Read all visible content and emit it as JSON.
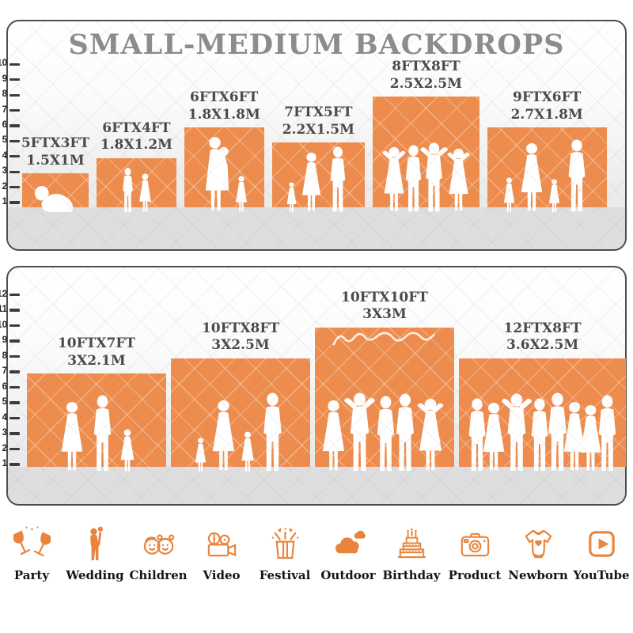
{
  "title": "SMALL-MEDIUM BACKDROPS",
  "accent_color": "#ED8C4D",
  "icon_color": "#E8843C",
  "panels": [
    {
      "name": "small-medium-top",
      "ruler_max": 10,
      "backdrops": [
        {
          "size_ft": "5FTX3FT",
          "size_m": "1.5X1M",
          "w_ft": 5,
          "h_ft": 3,
          "people": [
            {
              "type": "baby",
              "s": 0.4
            }
          ]
        },
        {
          "size_ft": "6FTX4FT",
          "size_m": "1.8X1.2M",
          "w_ft": 6,
          "h_ft": 4,
          "people": [
            {
              "type": "boy",
              "s": 0.63
            },
            {
              "type": "girl",
              "s": 0.55
            }
          ]
        },
        {
          "size_ft": "6FTX6FT",
          "size_m": "1.8X1.8M",
          "w_ft": 6,
          "h_ft": 6,
          "people": [
            {
              "type": "woman-baby",
              "s": 1.06
            },
            {
              "type": "girl",
              "s": 0.52
            }
          ]
        },
        {
          "size_ft": "7FTX5FT",
          "size_m": "2.2X1.5M",
          "w_ft": 7,
          "h_ft": 5,
          "people": [
            {
              "type": "girl",
              "s": 0.44
            },
            {
              "type": "woman",
              "s": 0.85
            },
            {
              "type": "man",
              "s": 0.92
            }
          ]
        },
        {
          "size_ft": "8FTX8FT",
          "size_m": "2.5X2.5M",
          "w_ft": 8,
          "h_ft": 8,
          "people": [
            {
              "type": "woman-arms-up",
              "s": 0.92
            },
            {
              "type": "man",
              "s": 0.95
            },
            {
              "type": "man-arms-up",
              "s": 0.98
            },
            {
              "type": "woman-arms-up",
              "s": 0.9
            }
          ]
        },
        {
          "size_ft": "9FTX6FT",
          "size_m": "2.7X1.8M",
          "w_ft": 9,
          "h_ft": 6,
          "people": [
            {
              "type": "girl",
              "s": 0.5
            },
            {
              "type": "woman",
              "s": 0.98
            },
            {
              "type": "girl",
              "s": 0.48
            },
            {
              "type": "man",
              "s": 1.02
            }
          ]
        }
      ]
    },
    {
      "name": "medium-bottom",
      "ruler_max": 12,
      "backdrops": [
        {
          "size_ft": "10FTX7FT",
          "size_m": "3X2.1M",
          "w_ft": 10,
          "h_ft": 7,
          "people": [
            {
              "type": "woman",
              "s": 0.86
            },
            {
              "type": "man",
              "s": 0.93
            },
            {
              "type": "girl",
              "s": 0.53
            }
          ]
        },
        {
          "size_ft": "10FTX8FT",
          "size_m": "3X2.5M",
          "w_ft": 10,
          "h_ft": 8,
          "people": [
            {
              "type": "girl",
              "s": 0.42
            },
            {
              "type": "woman",
              "s": 0.88
            },
            {
              "type": "girl",
              "s": 0.5
            },
            {
              "type": "man",
              "s": 0.96
            }
          ]
        },
        {
          "size_ft": "10FTX10FT",
          "size_m": "3X3M",
          "w_ft": 10,
          "h_ft": 10,
          "decor": "script-squiggle",
          "people": [
            {
              "type": "woman",
              "s": 0.88
            },
            {
              "type": "man-arms-up",
              "s": 0.96
            },
            {
              "type": "man",
              "s": 0.92
            },
            {
              "type": "man",
              "s": 0.95
            },
            {
              "type": "woman-arms-up",
              "s": 0.9
            }
          ]
        },
        {
          "size_ft": "12FTX8FT",
          "size_m": "3.6X2.5M",
          "w_ft": 12,
          "h_ft": 8,
          "people": [
            {
              "type": "man",
              "s": 0.9
            },
            {
              "type": "woman",
              "s": 0.85
            },
            {
              "type": "man-arms-up",
              "s": 0.95
            },
            {
              "type": "man",
              "s": 0.9
            },
            {
              "type": "man",
              "s": 0.96
            },
            {
              "type": "woman",
              "s": 0.86
            },
            {
              "type": "woman",
              "s": 0.82
            },
            {
              "type": "man",
              "s": 0.93
            }
          ]
        }
      ]
    }
  ],
  "categories": [
    {
      "label": "Party",
      "icon": "party-icon"
    },
    {
      "label": "Wedding",
      "icon": "wedding-icon"
    },
    {
      "label": "Children",
      "icon": "children-icon"
    },
    {
      "label": "Video",
      "icon": "video-icon"
    },
    {
      "label": "Festival",
      "icon": "festival-icon"
    },
    {
      "label": "Outdoor",
      "icon": "outdoor-icon"
    },
    {
      "label": "Birthday",
      "icon": "birthday-icon"
    },
    {
      "label": "Product",
      "icon": "product-icon"
    },
    {
      "label": "Newborn",
      "icon": "newborn-icon"
    },
    {
      "label": "YouTube",
      "icon": "youtube-icon"
    }
  ]
}
